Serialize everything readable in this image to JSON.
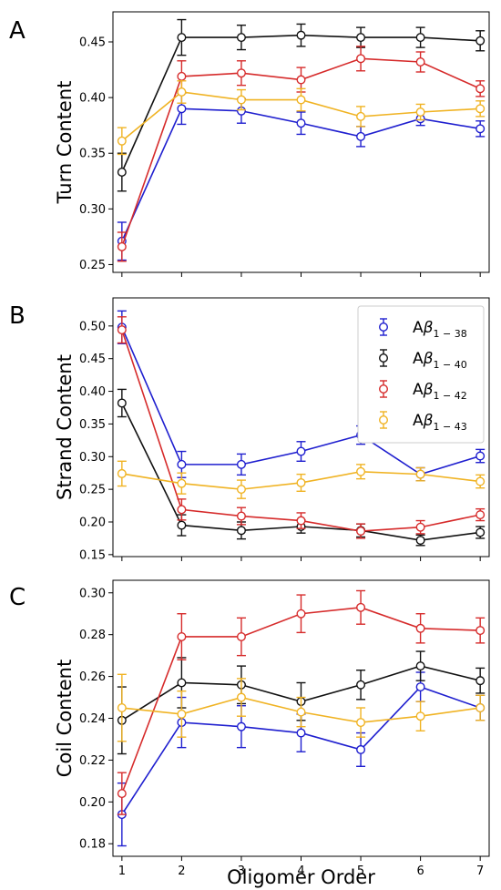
{
  "colors": {
    "Aβ1-38": "#1f1fcf",
    "Aβ1-40": "#111111",
    "Aβ1-42": "#d62b2b",
    "Aβ1-43": "#f0b323"
  },
  "xlabel": "Oligomer Order",
  "legend": {
    "placement": "top-right",
    "panel": "B",
    "entries": [
      {
        "prefix": "A",
        "greek": "β",
        "sub": "1 − 38",
        "series": "Aβ1-38"
      },
      {
        "prefix": "A",
        "greek": "β",
        "sub": "1 − 40",
        "series": "Aβ1-40"
      },
      {
        "prefix": "A",
        "greek": "β",
        "sub": "1 − 42",
        "series": "Aβ1-42"
      },
      {
        "prefix": "A",
        "greek": "β",
        "sub": "1 − 43",
        "series": "Aβ1-43"
      }
    ]
  },
  "chart_data": [
    {
      "type": "line",
      "panel": "A",
      "ylabel": "Turn Content",
      "x": [
        1,
        2,
        3,
        4,
        5,
        6,
        7
      ],
      "xlim": [
        0.85,
        7.15
      ],
      "ylim": [
        0.243,
        0.477
      ],
      "yticks": [
        0.25,
        0.3,
        0.35,
        0.4,
        0.45
      ],
      "ytick_labels": [
        "0.25",
        "0.30",
        "0.35",
        "0.40",
        "0.45"
      ],
      "series": [
        {
          "name": "Aβ1-38",
          "values": [
            0.271,
            0.39,
            0.388,
            0.377,
            0.365,
            0.381,
            0.372
          ],
          "errors": [
            0.017,
            0.014,
            0.011,
            0.01,
            0.009,
            0.006,
            0.007
          ]
        },
        {
          "name": "Aβ1-40",
          "values": [
            0.333,
            0.454,
            0.454,
            0.456,
            0.454,
            0.454,
            0.451
          ],
          "errors": [
            0.017,
            0.016,
            0.011,
            0.01,
            0.009,
            0.009,
            0.009
          ]
        },
        {
          "name": "Aβ1-42",
          "values": [
            0.266,
            0.419,
            0.422,
            0.416,
            0.435,
            0.432,
            0.408
          ],
          "errors": [
            0.013,
            0.014,
            0.011,
            0.011,
            0.011,
            0.009,
            0.007
          ]
        },
        {
          "name": "Aβ1-43",
          "values": [
            0.361,
            0.405,
            0.398,
            0.398,
            0.383,
            0.387,
            0.39
          ],
          "errors": [
            0.012,
            0.01,
            0.009,
            0.01,
            0.009,
            0.007,
            0.007
          ]
        }
      ]
    },
    {
      "type": "line",
      "panel": "B",
      "ylabel": "Strand Content",
      "x": [
        1,
        2,
        3,
        4,
        5,
        6,
        7
      ],
      "xlim": [
        0.85,
        7.15
      ],
      "ylim": [
        0.147,
        0.543
      ],
      "yticks": [
        0.15,
        0.2,
        0.25,
        0.3,
        0.35,
        0.4,
        0.45,
        0.5
      ],
      "ytick_labels": [
        "0.15",
        "0.20",
        "0.25",
        "0.30",
        "0.35",
        "0.40",
        "0.45",
        "0.50"
      ],
      "series": [
        {
          "name": "Aβ1-38",
          "values": [
            0.498,
            0.288,
            0.288,
            0.308,
            0.333,
            0.273,
            0.301
          ],
          "errors": [
            0.025,
            0.02,
            0.016,
            0.015,
            0.014,
            0.01,
            0.01
          ]
        },
        {
          "name": "Aβ1-40",
          "values": [
            0.382,
            0.195,
            0.187,
            0.193,
            0.187,
            0.172,
            0.184
          ],
          "errors": [
            0.021,
            0.016,
            0.013,
            0.01,
            0.01,
            0.008,
            0.009
          ]
        },
        {
          "name": "Aβ1-42",
          "values": [
            0.494,
            0.219,
            0.209,
            0.202,
            0.186,
            0.192,
            0.211
          ],
          "errors": [
            0.02,
            0.016,
            0.013,
            0.012,
            0.011,
            0.01,
            0.009
          ]
        },
        {
          "name": "Aβ1-43",
          "values": [
            0.274,
            0.259,
            0.25,
            0.26,
            0.277,
            0.273,
            0.262
          ],
          "errors": [
            0.019,
            0.016,
            0.014,
            0.013,
            0.011,
            0.01,
            0.01
          ]
        }
      ]
    },
    {
      "type": "line",
      "panel": "C",
      "ylabel": "Coil Content",
      "x": [
        1,
        2,
        3,
        4,
        5,
        6,
        7
      ],
      "xlim": [
        0.85,
        7.15
      ],
      "ylim": [
        0.174,
        0.306
      ],
      "yticks": [
        0.18,
        0.2,
        0.22,
        0.24,
        0.26,
        0.28,
        0.3
      ],
      "ytick_labels": [
        "0.18",
        "0.20",
        "0.22",
        "0.24",
        "0.26",
        "0.28",
        "0.30"
      ],
      "xticks": [
        1,
        2,
        3,
        4,
        5,
        6,
        7
      ],
      "xtick_labels": [
        "1",
        "2",
        "3",
        "4",
        "5",
        "6",
        "7"
      ],
      "series": [
        {
          "name": "Aβ1-38",
          "values": [
            0.194,
            0.238,
            0.236,
            0.233,
            0.225,
            0.255,
            0.245
          ],
          "errors": [
            0.015,
            0.012,
            0.01,
            0.009,
            0.008,
            0.007,
            0.006
          ]
        },
        {
          "name": "Aβ1-40",
          "values": [
            0.239,
            0.257,
            0.256,
            0.248,
            0.256,
            0.265,
            0.258
          ],
          "errors": [
            0.016,
            0.012,
            0.009,
            0.009,
            0.007,
            0.007,
            0.006
          ]
        },
        {
          "name": "Aβ1-42",
          "values": [
            0.204,
            0.279,
            0.279,
            0.29,
            0.293,
            0.283,
            0.282
          ],
          "errors": [
            0.01,
            0.011,
            0.009,
            0.009,
            0.008,
            0.007,
            0.006
          ]
        },
        {
          "name": "Aβ1-43",
          "values": [
            0.245,
            0.242,
            0.25,
            0.243,
            0.238,
            0.241,
            0.245
          ],
          "errors": [
            0.016,
            0.011,
            0.009,
            0.007,
            0.007,
            0.007,
            0.006
          ]
        }
      ]
    }
  ]
}
